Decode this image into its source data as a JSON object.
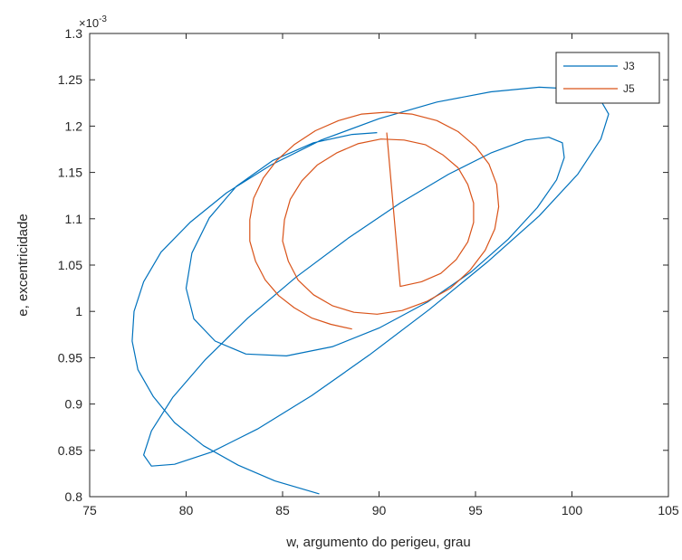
{
  "chart_data": {
    "type": "line",
    "title": "",
    "xlabel": "w, argumento do perigeu, grau",
    "ylabel": "e, excentricidade",
    "xlim": [
      75,
      105
    ],
    "ylim": [
      0.0008,
      0.0013
    ],
    "x_ticks": [
      75,
      80,
      85,
      90,
      95,
      100,
      105
    ],
    "x_tick_labels": [
      "75",
      "80",
      "85",
      "90",
      "95",
      "100",
      "105"
    ],
    "y_ticks": [
      0.0008,
      0.00085,
      0.0009,
      0.00095,
      0.001,
      0.00105,
      0.0011,
      0.00115,
      0.0012,
      0.00125,
      0.0013
    ],
    "y_tick_labels": [
      "0.8",
      "0.85",
      "0.9",
      "0.95",
      "1",
      "1.05",
      "1.1",
      "1.15",
      "1.2",
      "1.25",
      "1.3"
    ],
    "y_multiplier": "×10",
    "y_multiplier_exp": "-3",
    "grid": false,
    "legend_position": "top-right",
    "series": [
      {
        "name": "J3",
        "color": "#0072BD",
        "x": [
          86.9,
          84.6,
          82.7,
          80.9,
          79.4,
          78.3,
          77.5,
          77.2,
          77.3,
          77.8,
          78.7,
          80.2,
          82.1,
          84.4,
          87.0,
          90.0,
          93.0,
          95.8,
          98.3,
          100.2,
          101.4,
          101.9,
          101.5,
          100.3,
          98.3,
          95.6,
          92.6,
          89.5,
          86.5,
          83.7,
          81.3,
          79.4,
          78.2,
          77.8,
          78.2,
          79.3,
          81.0,
          83.2,
          85.7,
          88.4,
          91.1,
          93.6,
          95.8,
          97.6,
          98.8,
          99.5,
          99.6,
          99.2,
          98.2,
          96.7,
          94.8,
          92.5,
          90.0,
          87.6,
          85.2,
          83.1,
          81.5,
          80.4,
          80.0,
          80.3,
          81.2,
          82.6,
          84.5,
          86.6,
          88.6,
          89.9
        ],
        "y": [
          0.000803,
          0.000817,
          0.000834,
          0.000855,
          0.00088,
          0.000908,
          0.000937,
          0.000968,
          0.001,
          0.001032,
          0.001064,
          0.001096,
          0.001128,
          0.001158,
          0.001185,
          0.001208,
          0.001226,
          0.001237,
          0.001242,
          0.00124,
          0.001231,
          0.001213,
          0.001186,
          0.001148,
          0.001103,
          0.001053,
          0.001002,
          0.000953,
          0.000909,
          0.000873,
          0.000848,
          0.000835,
          0.000833,
          0.000845,
          0.000871,
          0.000907,
          0.000948,
          0.000993,
          0.001037,
          0.001079,
          0.001117,
          0.001148,
          0.001171,
          0.001185,
          0.001188,
          0.001182,
          0.001166,
          0.001142,
          0.001112,
          0.001078,
          0.001043,
          0.00101,
          0.000982,
          0.000962,
          0.000952,
          0.000954,
          0.000968,
          0.000992,
          0.001025,
          0.001063,
          0.001101,
          0.001135,
          0.001163,
          0.001182,
          0.001191,
          0.001193
        ]
      },
      {
        "name": "J5",
        "color": "#D95319",
        "x": [
          88.6,
          87.5,
          86.5,
          85.6,
          84.8,
          84.1,
          83.6,
          83.3,
          83.3,
          83.5,
          84.0,
          84.7,
          85.6,
          86.7,
          87.9,
          89.1,
          90.4,
          91.7,
          93.0,
          94.1,
          95.0,
          95.7,
          96.1,
          96.2,
          96.0,
          95.5,
          94.7,
          93.7,
          92.5,
          91.2,
          89.9,
          88.7,
          87.6,
          86.6,
          85.8,
          85.3,
          85.0,
          85.1,
          85.4,
          86.0,
          86.8,
          87.8,
          88.9,
          90.1,
          91.3,
          92.4,
          93.3,
          94.1,
          94.6,
          94.9,
          94.9,
          94.6,
          94.0,
          93.2,
          92.2,
          91.1,
          90.4
        ],
        "y": [
          0.000981,
          0.000986,
          0.000993,
          0.001004,
          0.001017,
          0.001034,
          0.001054,
          0.001076,
          0.001099,
          0.001122,
          0.001144,
          0.001163,
          0.00118,
          0.001195,
          0.001206,
          0.001213,
          0.001215,
          0.001213,
          0.001206,
          0.001194,
          0.001178,
          0.001159,
          0.001137,
          0.001113,
          0.001089,
          0.001066,
          0.001044,
          0.001025,
          0.001011,
          0.001001,
          0.000997,
          0.000999,
          0.001006,
          0.001018,
          0.001034,
          0.001054,
          0.001076,
          0.001099,
          0.001121,
          0.001141,
          0.001158,
          0.001171,
          0.001181,
          0.001186,
          0.001185,
          0.00118,
          0.001169,
          0.001155,
          0.001137,
          0.001117,
          0.001096,
          0.001075,
          0.001056,
          0.001041,
          0.001032,
          0.001027,
          0.001193
        ]
      }
    ]
  }
}
